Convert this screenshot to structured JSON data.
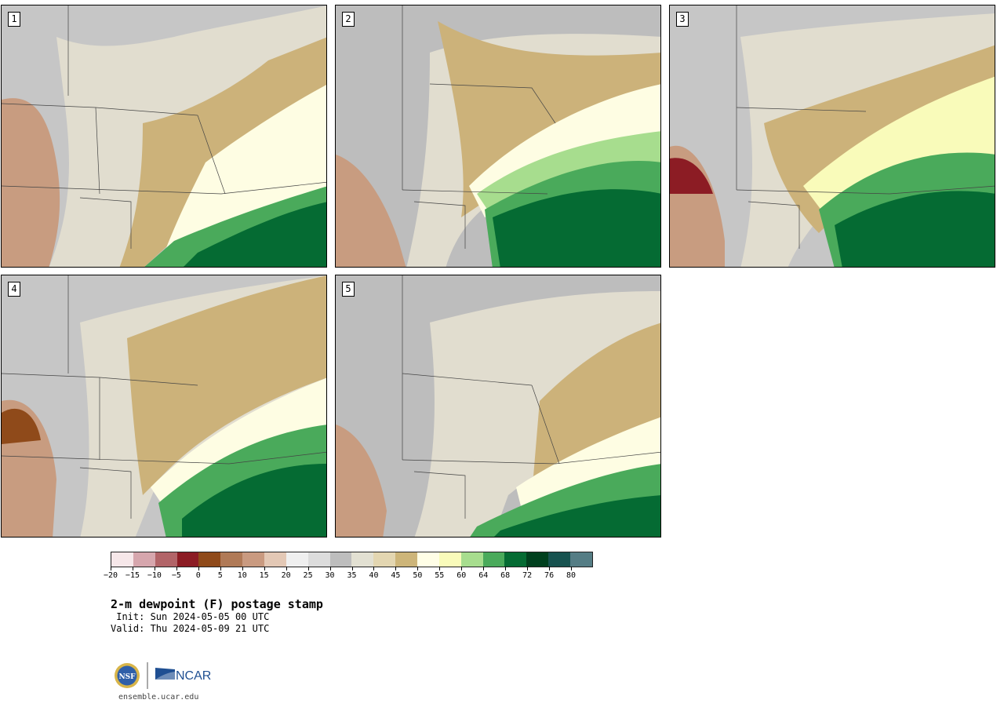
{
  "panels": [
    {
      "label": "1"
    },
    {
      "label": "2"
    },
    {
      "label": "3"
    },
    {
      "label": "4"
    },
    {
      "label": "5"
    }
  ],
  "colorbar": {
    "colors": [
      "#f6e7e9",
      "#d6a6ad",
      "#b26468",
      "#8c1c24",
      "#8f4a1a",
      "#b07a57",
      "#c99a80",
      "#e3c8b5",
      "#efefef",
      "#dcdcdc",
      "#bdbdbd",
      "#e2e0d2",
      "#e3d6b1",
      "#cdb579",
      "#fffee6",
      "#f9fbba",
      "#a7dd8e",
      "#4aaa5b",
      "#056b33",
      "#00401e",
      "#17524f",
      "#557d85"
    ],
    "tick_labels": [
      "-20",
      "-15",
      "-10",
      "-5",
      "0",
      "5",
      "10",
      "15",
      "20",
      "25",
      "30",
      "35",
      "40",
      "45",
      "50",
      "55",
      "60",
      "64",
      "68",
      "72",
      "76",
      "80"
    ]
  },
  "title": "2-m dewpoint (F) postage stamp",
  "init": " Init: Sun 2024-05-05 00 UTC",
  "valid": "Valid: Thu 2024-05-09 21 UTC",
  "logos": {
    "nsf": "NSF",
    "ncar": "NCAR"
  },
  "footer": "ensemble.ucar.edu"
}
